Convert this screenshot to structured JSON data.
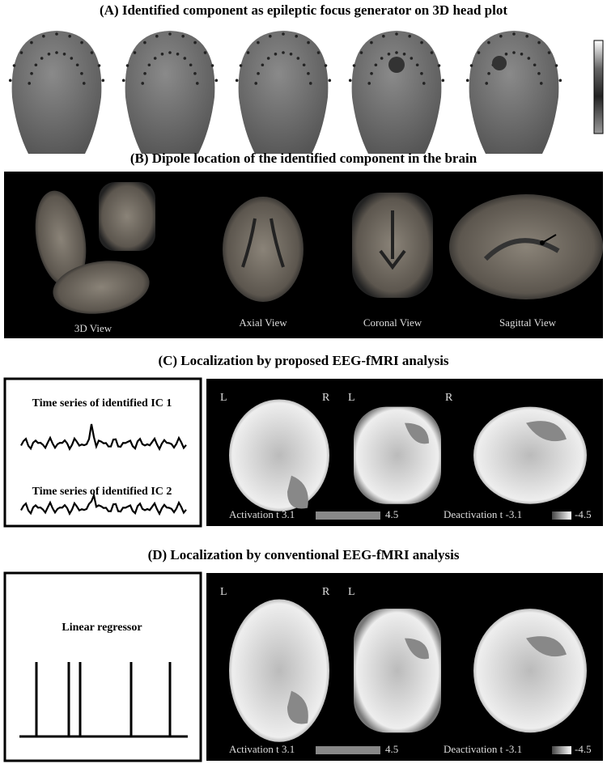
{
  "panel_a": {
    "title": "(A) Identified component as epileptic focus generator on 3D head plot"
  },
  "panel_b": {
    "title": "(B) Dipole location of the identified component in the brain",
    "views": [
      "3D View",
      "Axial View",
      "Coronal View",
      "Sagittal View"
    ]
  },
  "panel_c": {
    "title": "(C) Localization by proposed EEG-fMRI analysis",
    "series_labels": [
      "Time series of identified IC 1",
      "Time series of identified IC 2"
    ],
    "orientation_labels": [
      "L",
      "R",
      "L",
      "R"
    ],
    "legend": {
      "activation": "Activation t 3.1",
      "activation_max": "4.5",
      "deactivation": "Deactivation t -3.1",
      "deactivation_max": "-4.5"
    }
  },
  "panel_d": {
    "title": "(D) Localization by conventional EEG-fMRI analysis",
    "regressor_label": "Linear regressor",
    "orientation_labels": [
      "L",
      "R",
      "L"
    ],
    "legend": {
      "activation": "Activation t 3.1",
      "activation_max": "4.5",
      "deactivation": "Deactivation t -3.1",
      "deactivation_max": "-4.5"
    }
  }
}
